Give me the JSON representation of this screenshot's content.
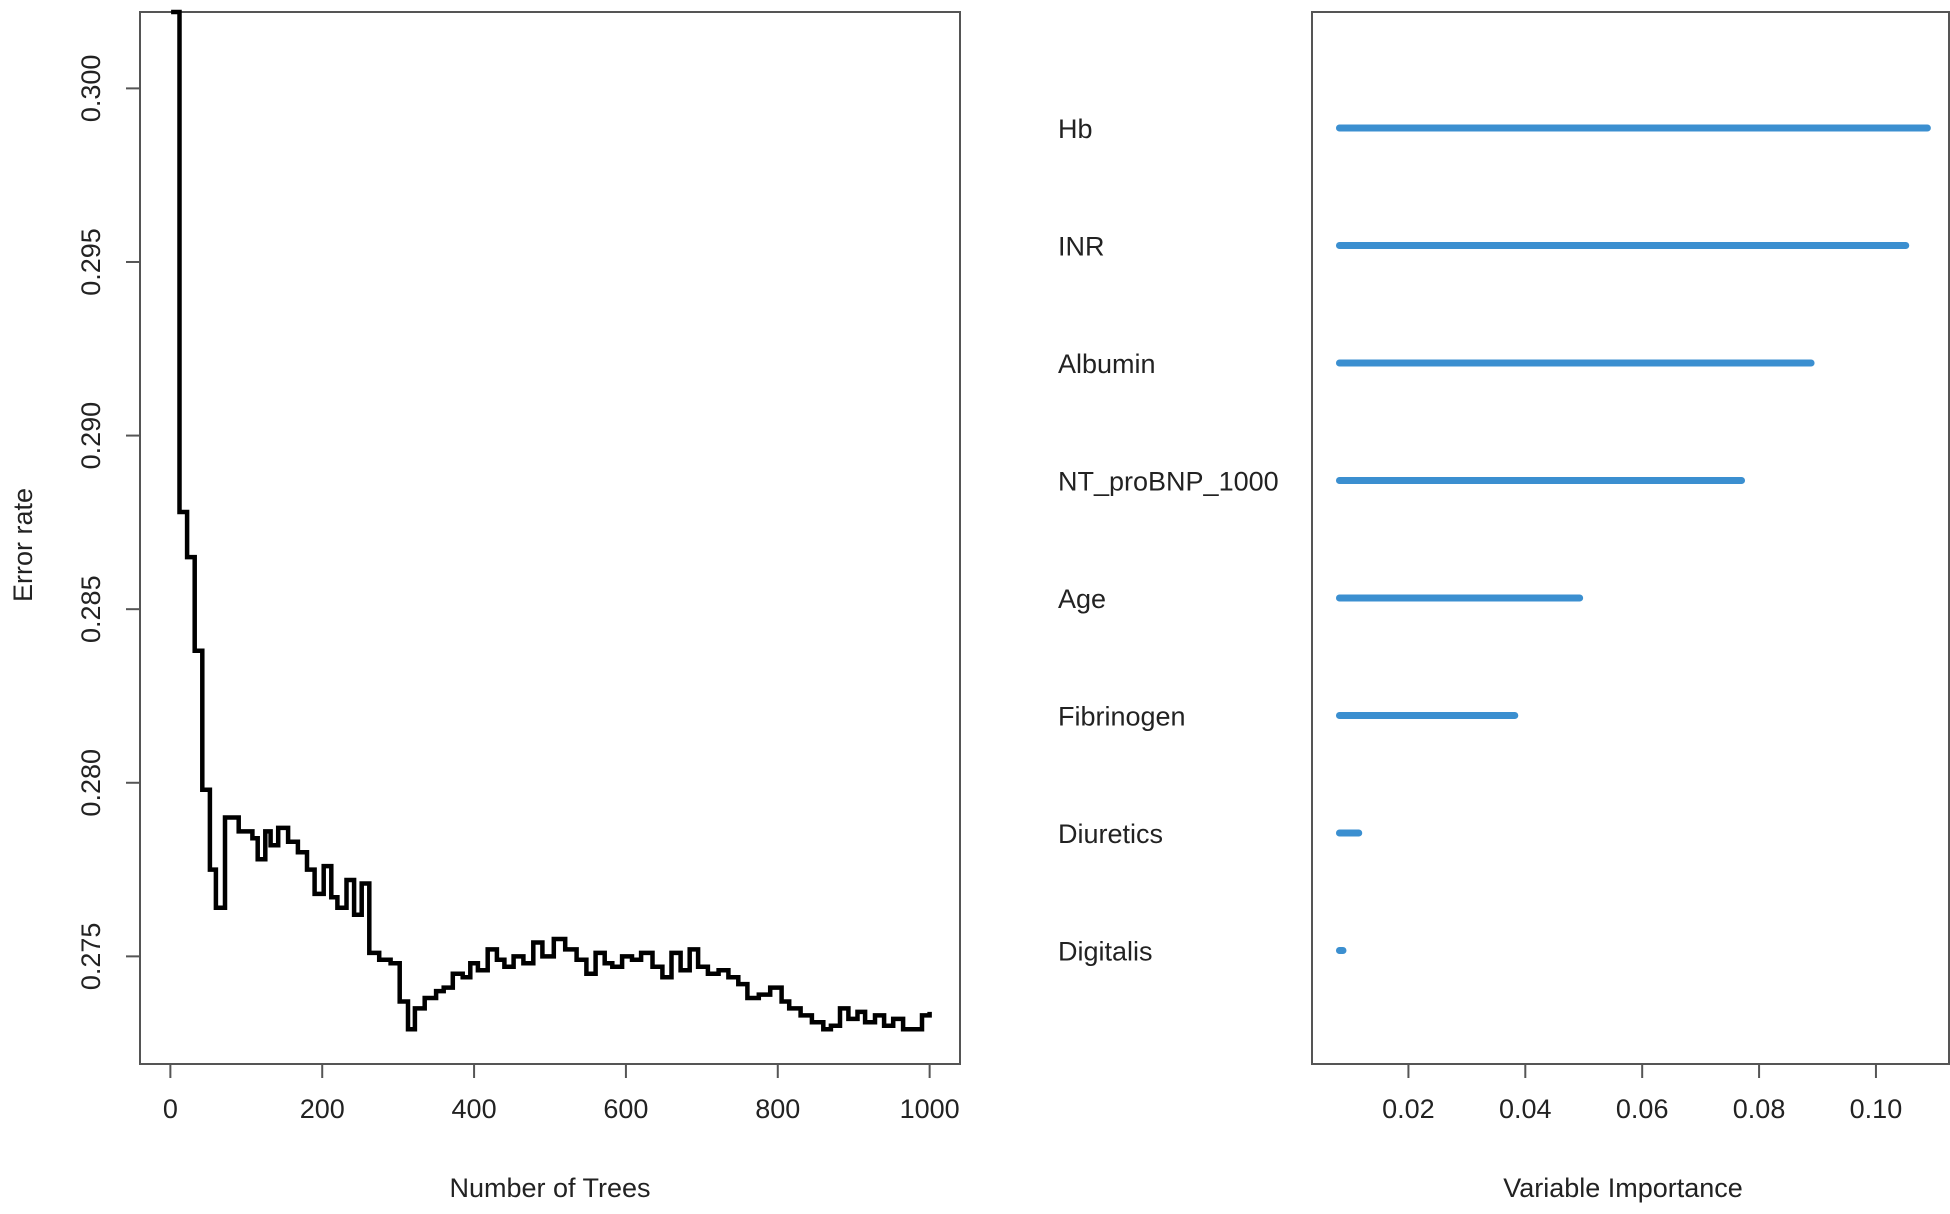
{
  "colors": {
    "line": "#000000",
    "bar": "#3b8fd0",
    "axis": "#555555",
    "frame": "#555555"
  },
  "chart_data": [
    {
      "type": "line",
      "title": "",
      "xlabel": "Number of Trees",
      "ylabel": "Error rate",
      "xlim": [
        -40,
        1040
      ],
      "ylim": [
        0.2719,
        0.3022
      ],
      "x_ticks": [
        0,
        200,
        400,
        600,
        800,
        1000
      ],
      "x_tick_labels": [
        "0",
        "200",
        "400",
        "600",
        "800",
        "1000"
      ],
      "y_ticks": [
        0.275,
        0.28,
        0.285,
        0.29,
        0.295,
        0.3
      ],
      "y_tick_labels": [
        "0.275",
        "0.280",
        "0.285",
        "0.290",
        "0.295",
        "0.300"
      ],
      "grid": false,
      "step": true,
      "x": [
        1,
        12,
        22,
        32,
        42,
        52,
        60,
        72,
        90,
        108,
        115,
        125,
        132,
        142,
        155,
        168,
        180,
        190,
        202,
        212,
        220,
        232,
        242,
        252,
        262,
        275,
        290,
        302,
        313,
        322,
        335,
        350,
        360,
        372,
        385,
        395,
        405,
        418,
        430,
        440,
        452,
        465,
        478,
        490,
        505,
        520,
        535,
        548,
        560,
        572,
        582,
        595,
        608,
        620,
        635,
        648,
        660,
        672,
        684,
        695,
        708,
        722,
        735,
        748,
        760,
        775,
        790,
        805,
        815,
        830,
        845,
        860,
        870,
        882,
        893,
        905,
        915,
        928,
        940,
        952,
        965,
        978,
        990,
        1000
      ],
      "y": [
        0.3022,
        0.2878,
        0.2865,
        0.2838,
        0.2798,
        0.2775,
        0.2764,
        0.279,
        0.2786,
        0.2784,
        0.2778,
        0.2786,
        0.2782,
        0.2787,
        0.2783,
        0.278,
        0.2775,
        0.2768,
        0.2776,
        0.2767,
        0.2764,
        0.2772,
        0.2762,
        0.2771,
        0.2751,
        0.2749,
        0.2748,
        0.2737,
        0.2729,
        0.2735,
        0.2738,
        0.274,
        0.2741,
        0.2745,
        0.2744,
        0.2748,
        0.2746,
        0.2752,
        0.2749,
        0.2747,
        0.275,
        0.2748,
        0.2754,
        0.275,
        0.2755,
        0.2752,
        0.2749,
        0.2745,
        0.2751,
        0.2748,
        0.2747,
        0.275,
        0.2749,
        0.2751,
        0.2747,
        0.2744,
        0.2751,
        0.2746,
        0.2752,
        0.2747,
        0.2745,
        0.2746,
        0.2744,
        0.2742,
        0.2738,
        0.2739,
        0.2741,
        0.2737,
        0.2735,
        0.2733,
        0.2731,
        0.2729,
        0.273,
        0.2735,
        0.2732,
        0.2734,
        0.2731,
        0.2733,
        0.273,
        0.2732,
        0.2729,
        0.2729,
        0.2733,
        0.2734
      ]
    },
    {
      "type": "bar",
      "orientation": "horizontal",
      "title": "",
      "xlabel": "Variable Importance",
      "ylabel": "",
      "xlim": [
        0.0035,
        0.1125
      ],
      "x_ticks": [
        0.02,
        0.04,
        0.06,
        0.08,
        0.1
      ],
      "x_tick_labels": [
        "0.02",
        "0.04",
        "0.06",
        "0.08",
        "0.10"
      ],
      "bar_start": 0.0082,
      "grid": false,
      "categories": [
        "Hb",
        "INR",
        "Albumin",
        "NT_proBNP_1000",
        "Age",
        "Fibrinogen",
        "Diuretics",
        "Digitalis"
      ],
      "values": [
        0.1088,
        0.1051,
        0.0889,
        0.077,
        0.0493,
        0.0382,
        0.0115,
        0.0088
      ]
    }
  ]
}
